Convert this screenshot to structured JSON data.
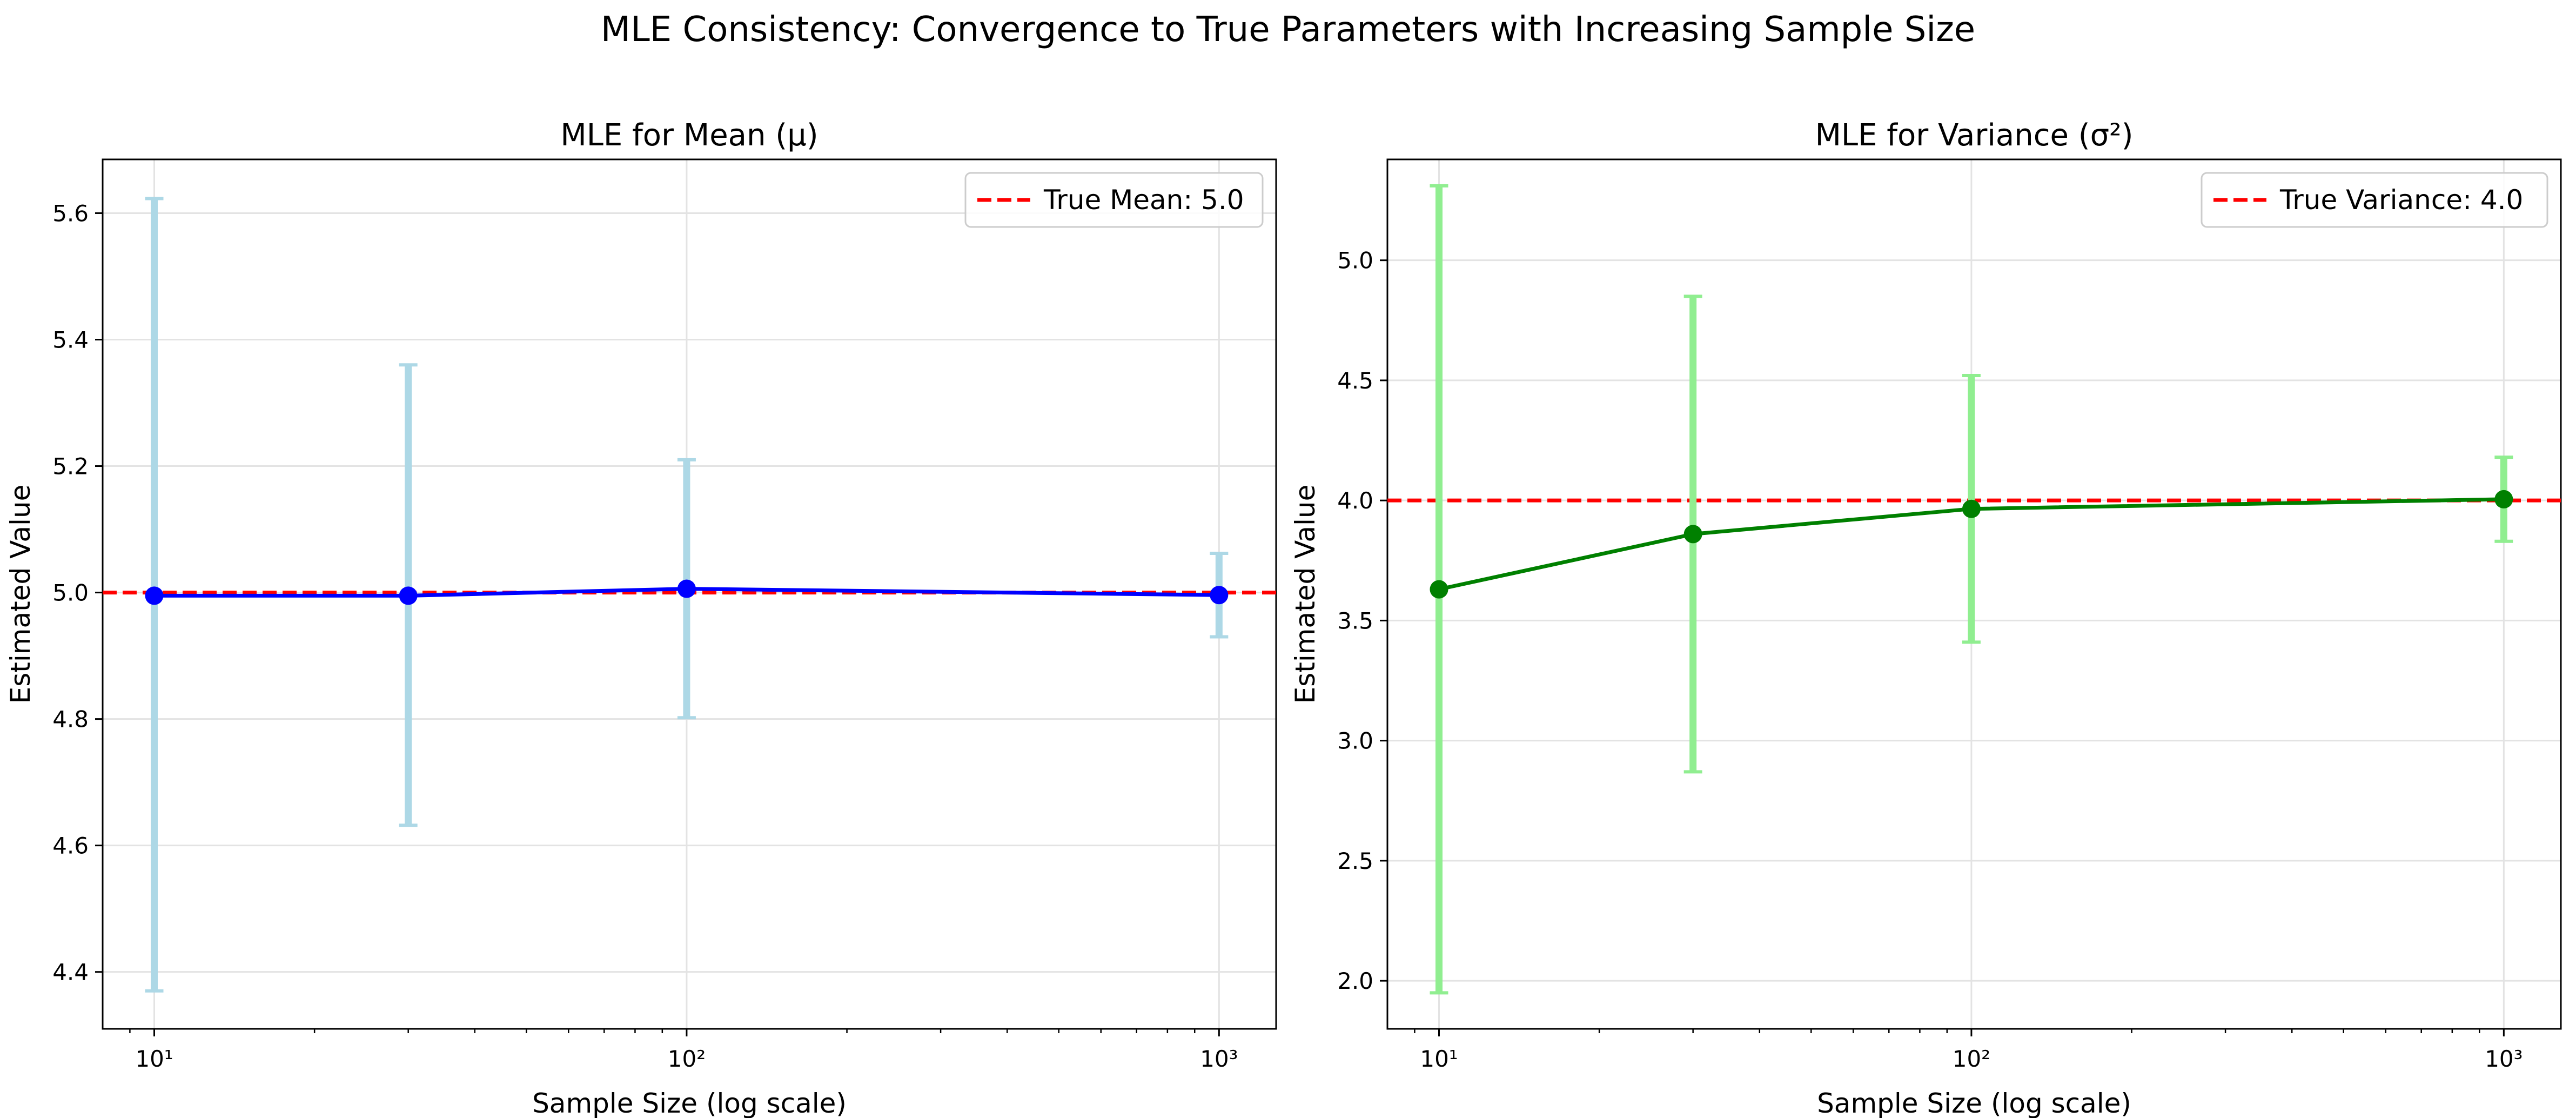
{
  "figure": {
    "suptitle": "MLE Consistency: Convergence to True Parameters with Increasing Sample Size"
  },
  "chart_data": [
    {
      "type": "line",
      "title": "MLE for Mean (μ)",
      "xlabel": "Sample Size (log scale)",
      "ylabel": "Estimated Value",
      "xscale": "log",
      "xlim": [
        8,
        1280
      ],
      "ylim": [
        4.31,
        5.685
      ],
      "grid": true,
      "legend_position": "upper right",
      "x": [
        10,
        30,
        100,
        1000
      ],
      "xticks": [
        10,
        100,
        1000
      ],
      "xtick_labels": [
        "10¹",
        "10²",
        "10³"
      ],
      "yticks": [
        4.4,
        4.6,
        4.8,
        5.0,
        5.2,
        5.4,
        5.6
      ],
      "ytick_labels": [
        "4.4",
        "4.6",
        "4.8",
        "5.0",
        "5.2",
        "5.4",
        "5.6"
      ],
      "series": [
        {
          "values": [
            4.995,
            4.995,
            5.006,
            4.996
          ],
          "error_low": [
            4.37,
            4.632,
            4.802,
            4.93
          ],
          "error_high": [
            5.623,
            5.36,
            5.21,
            5.062
          ],
          "line_color": "#0000ff",
          "error_color": "#add8e6"
        }
      ],
      "reference_line": {
        "y": 5.0,
        "name": "True Mean: 5.0",
        "color": "#ff0000"
      }
    },
    {
      "type": "line",
      "title": "MLE for Variance (σ²)",
      "xlabel": "Sample Size (log scale)",
      "ylabel": "Estimated Value",
      "xscale": "log",
      "xlim": [
        8,
        1280
      ],
      "ylim": [
        1.8,
        5.42
      ],
      "grid": true,
      "legend_position": "upper right",
      "x": [
        10,
        30,
        100,
        1000
      ],
      "xticks": [
        10,
        100,
        1000
      ],
      "xtick_labels": [
        "10¹",
        "10²",
        "10³"
      ],
      "yticks": [
        2.0,
        2.5,
        3.0,
        3.5,
        4.0,
        4.5,
        5.0
      ],
      "ytick_labels": [
        "2.0",
        "2.5",
        "3.0",
        "3.5",
        "4.0",
        "4.5",
        "5.0"
      ],
      "series": [
        {
          "values": [
            3.63,
            3.86,
            3.965,
            4.005
          ],
          "error_low": [
            1.95,
            2.87,
            3.41,
            3.83
          ],
          "error_high": [
            5.31,
            4.85,
            4.52,
            4.18
          ],
          "line_color": "#008000",
          "error_color": "#90ee90"
        }
      ],
      "reference_line": {
        "y": 4.0,
        "name": "True Variance: 4.0",
        "color": "#ff0000"
      }
    }
  ]
}
